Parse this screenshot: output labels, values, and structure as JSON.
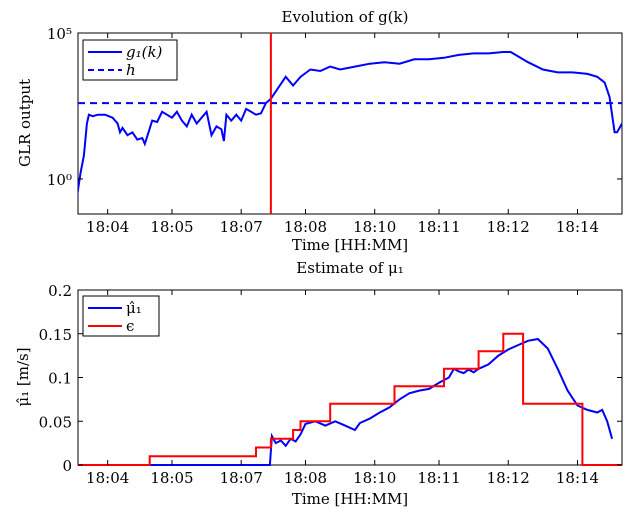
{
  "chart_data": [
    {
      "type": "line",
      "title": "Evolution of g(k)",
      "xlabel": "Time [HH:MM]",
      "ylabel": "GLR output",
      "yscale": "log",
      "ylim_exponent": [
        -1.2,
        5
      ],
      "ytick_labels": [
        "10⁰",
        "10⁵"
      ],
      "xlim_minutes": [
        3.4,
        14.4
      ],
      "xtick_labels": [
        "18:04",
        "18:05",
        "18:07",
        "18:08",
        "18:10",
        "18:11",
        "18:12",
        "18:14"
      ],
      "legend": {
        "placement": "top-left",
        "entries": [
          "g₁(k)",
          "h"
        ]
      },
      "series": [
        {
          "name": "g₁(k)",
          "color": "#0000ff",
          "style": "solid",
          "x_minutes": [
            3.38,
            3.45,
            3.52,
            3.58,
            3.62,
            3.7,
            3.8,
            3.95,
            4.1,
            4.2,
            4.25,
            4.3,
            4.4,
            4.5,
            4.6,
            4.7,
            4.75,
            4.8,
            4.9,
            5.0,
            5.1,
            5.2,
            5.3,
            5.4,
            5.5,
            5.6,
            5.7,
            5.8,
            5.9,
            6.0,
            6.1,
            6.2,
            6.3,
            6.35,
            6.4,
            6.5,
            6.6,
            6.7,
            6.8,
            6.9,
            7.0,
            7.1,
            7.2,
            7.3,
            7.4,
            7.6,
            7.75,
            7.9,
            8.1,
            8.3,
            8.5,
            8.7,
            9.0,
            9.3,
            9.6,
            9.9,
            10.2,
            10.5,
            10.8,
            11.1,
            11.4,
            11.7,
            12.0,
            12.15,
            12.3,
            12.5,
            12.8,
            13.1,
            13.4,
            13.7,
            13.9,
            14.05,
            14.15,
            14.25,
            14.3,
            14.4
          ],
          "y_exponent": [
            -0.6,
            0.2,
            0.8,
            1.9,
            2.2,
            2.15,
            2.2,
            2.2,
            2.1,
            1.9,
            1.6,
            1.75,
            1.5,
            1.6,
            1.35,
            1.4,
            1.2,
            1.45,
            2.0,
            1.95,
            2.3,
            2.2,
            2.1,
            2.3,
            2.0,
            1.8,
            2.2,
            1.9,
            2.1,
            2.3,
            1.5,
            1.8,
            1.7,
            1.3,
            2.2,
            2.0,
            2.2,
            2.0,
            2.4,
            2.3,
            2.2,
            2.25,
            2.6,
            2.75,
            3.0,
            3.5,
            3.2,
            3.5,
            3.75,
            3.7,
            3.85,
            3.75,
            3.85,
            3.95,
            4.0,
            3.95,
            4.1,
            4.1,
            4.15,
            4.25,
            4.3,
            4.3,
            4.35,
            4.35,
            4.2,
            4.0,
            3.75,
            3.65,
            3.65,
            3.6,
            3.5,
            3.3,
            2.8,
            1.6,
            1.6,
            1.9
          ]
        },
        {
          "name": "h",
          "color": "#0000ff",
          "style": "dashed",
          "x_minutes": [
            3.4,
            14.4
          ],
          "y_exponent": [
            2.6,
            2.6
          ]
        }
      ],
      "annotations": [
        {
          "type": "vertical-line",
          "x_minutes": 7.3,
          "color": "#ff0000"
        }
      ]
    },
    {
      "type": "line",
      "title": "Estimate of μ₁",
      "xlabel": "Time [HH:MM]",
      "ylabel": "μ̂₁ [m/s]",
      "ylim": [
        0,
        0.2
      ],
      "ytick_labels": [
        "0",
        "0.05",
        "0.1",
        "0.15",
        "0.2"
      ],
      "xlim_minutes": [
        3.4,
        14.4
      ],
      "xtick_labels": [
        "18:04",
        "18:05",
        "18:07",
        "18:08",
        "18:10",
        "18:11",
        "18:12",
        "18:14"
      ],
      "legend": {
        "placement": "top-left",
        "entries": [
          "μ̂₁",
          "ϵ"
        ]
      },
      "series": [
        {
          "name": "μ̂₁",
          "color": "#0000ff",
          "x_minutes": [
            3.4,
            7.2,
            7.28,
            7.32,
            7.4,
            7.5,
            7.6,
            7.7,
            7.8,
            7.9,
            8.0,
            8.2,
            8.4,
            8.6,
            8.8,
            9.0,
            9.1,
            9.3,
            9.5,
            9.7,
            9.9,
            10.1,
            10.3,
            10.5,
            10.7,
            10.9,
            11.0,
            11.1,
            11.2,
            11.3,
            11.4,
            11.5,
            11.7,
            11.9,
            12.1,
            12.3,
            12.5,
            12.7,
            12.9,
            13.1,
            13.3,
            13.5,
            13.7,
            13.9,
            14.0,
            14.1,
            14.2
          ],
          "values": [
            0,
            0,
            0,
            0.033,
            0.025,
            0.028,
            0.022,
            0.03,
            0.027,
            0.035,
            0.047,
            0.05,
            0.045,
            0.05,
            0.045,
            0.04,
            0.048,
            0.053,
            0.06,
            0.066,
            0.075,
            0.082,
            0.085,
            0.087,
            0.094,
            0.1,
            0.11,
            0.107,
            0.105,
            0.109,
            0.106,
            0.11,
            0.115,
            0.125,
            0.132,
            0.137,
            0.142,
            0.144,
            0.133,
            0.11,
            0.085,
            0.068,
            0.063,
            0.06,
            0.063,
            0.05,
            0.03
          ]
        },
        {
          "name": "ϵ",
          "color": "#ff0000",
          "style": "step",
          "x_minutes": [
            3.4,
            4.85,
            7.0,
            7.3,
            7.55,
            7.75,
            7.9,
            8.15,
            8.5,
            9.1,
            9.8,
            10.8,
            11.5,
            12.0,
            12.4,
            13.4,
            13.6,
            14.4
          ],
          "values": [
            0,
            0.01,
            0.02,
            0.03,
            0.03,
            0.04,
            0.05,
            0.05,
            0.07,
            0.07,
            0.09,
            0.11,
            0.13,
            0.15,
            0.07,
            0.07,
            0,
            0
          ]
        }
      ]
    }
  ]
}
